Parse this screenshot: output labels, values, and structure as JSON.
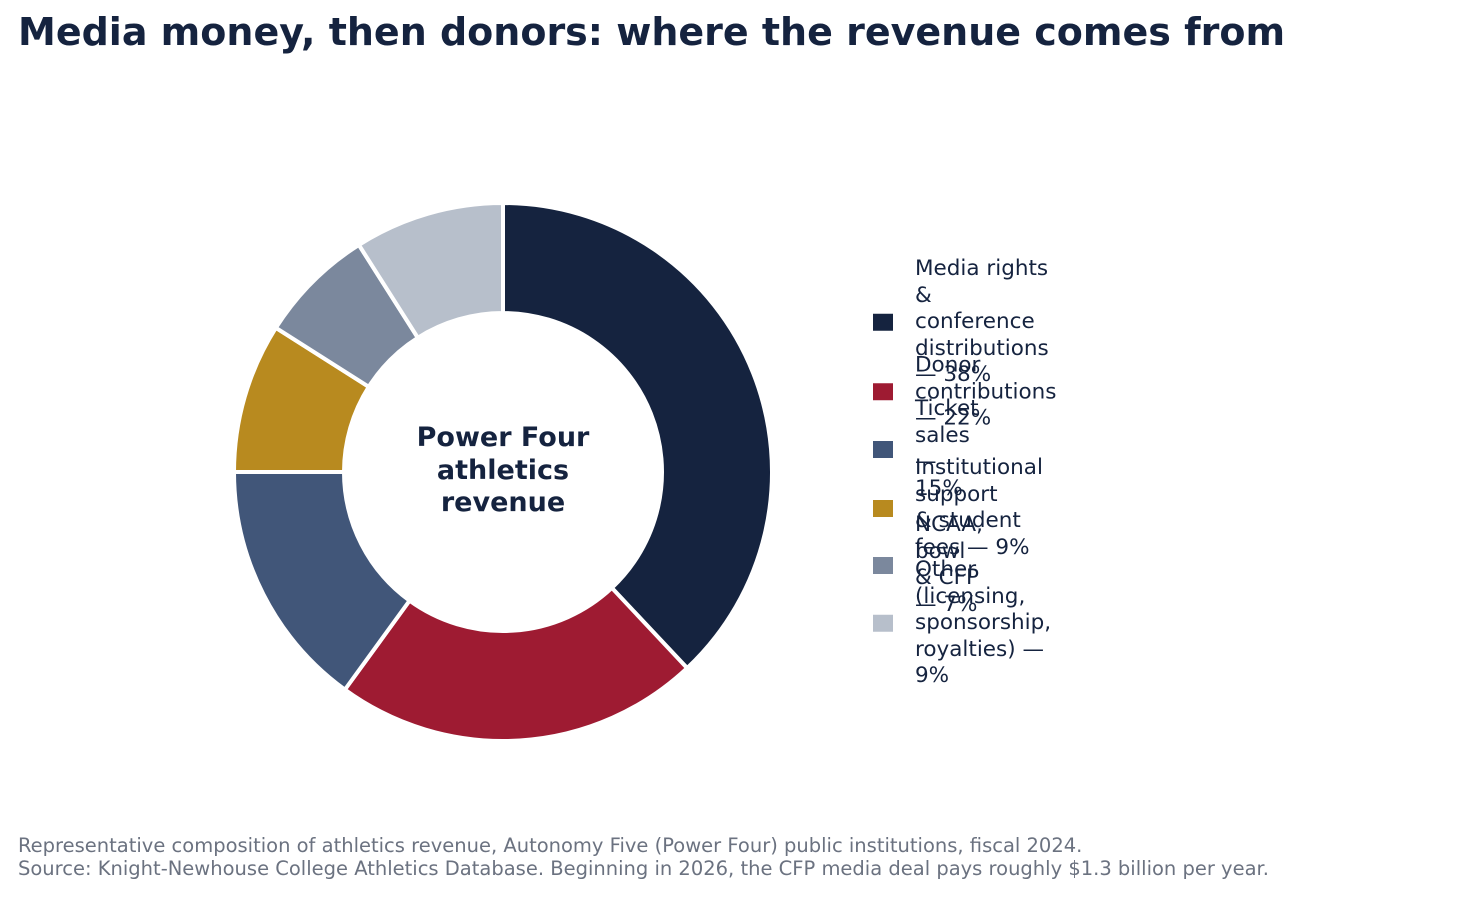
{
  "title": "Media money, then donors: where the revenue comes from",
  "center_label": {
    "line1": "Power Four",
    "line2": "athletics",
    "line3": "revenue"
  },
  "footnote": {
    "line1": "Representative composition of athletics revenue, Autonomy Five (Power Four) public institutions, fiscal 2024.",
    "line2": "Source: Knight-Newhouse College Athletics Database. Beginning in 2026, the CFP media deal pays roughly $1.3 billion per year."
  },
  "chart_data": {
    "type": "pie",
    "style": "donut",
    "start": "12 o'clock",
    "direction": "clockwise",
    "legend_position": "right",
    "categories": [
      "Media rights & conference distributions",
      "Donor contributions",
      "Ticket sales",
      "Institutional support & student fees",
      "NCAA, bowl & CFP",
      "Other (licensing, sponsorship, royalties)"
    ],
    "values": [
      38,
      22,
      15,
      9,
      7,
      9
    ],
    "unit": "%",
    "colors": [
      "#15233f",
      "#9e1b32",
      "#415679",
      "#b88a1f",
      "#7b889d",
      "#b7bfcb"
    ],
    "legend_labels": [
      "Media rights &\nconference distributions  —  38%",
      "Donor\ncontributions  —  22%",
      "Ticket sales  —  15%",
      "Institutional support\n& student fees  —  9%",
      "NCAA, bowl & CFP  —  7%",
      "Other (licensing,\nsponsorship, royalties)  —  9%"
    ]
  }
}
